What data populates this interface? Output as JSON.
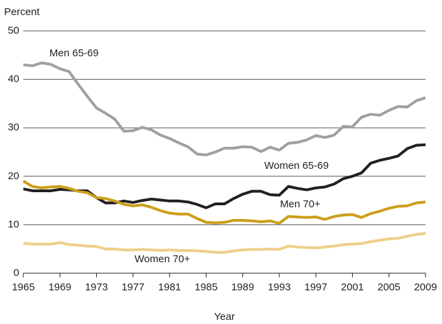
{
  "chart_data": {
    "type": "line",
    "y_axis_label": "Percent",
    "x_axis_label": "Year",
    "x": [
      1965,
      1966,
      1967,
      1968,
      1969,
      1970,
      1971,
      1972,
      1973,
      1974,
      1975,
      1976,
      1977,
      1978,
      1979,
      1980,
      1981,
      1982,
      1983,
      1984,
      1985,
      1986,
      1987,
      1988,
      1989,
      1990,
      1991,
      1992,
      1993,
      1994,
      1995,
      1996,
      1997,
      1998,
      1999,
      2000,
      2001,
      2002,
      2003,
      2004,
      2005,
      2006,
      2007,
      2008,
      2009
    ],
    "series": [
      {
        "name": "Men 65-69",
        "color": "#a0a0a0",
        "values": [
          43.0,
          42.8,
          43.4,
          43.1,
          42.2,
          41.6,
          39.0,
          36.5,
          34.1,
          33.0,
          31.8,
          29.3,
          29.4,
          30.1,
          29.6,
          28.5,
          27.8,
          26.9,
          26.1,
          24.6,
          24.4,
          25.0,
          25.8,
          25.8,
          26.1,
          26.0,
          25.1,
          26.0,
          25.4,
          26.8,
          27.0,
          27.5,
          28.4,
          28.0,
          28.5,
          30.3,
          30.2,
          32.2,
          32.8,
          32.6,
          33.6,
          34.4,
          34.3,
          35.6,
          36.2
        ]
      },
      {
        "name": "Women 65-69",
        "color": "#231f20",
        "values": [
          17.4,
          17.0,
          17.0,
          17.0,
          17.3,
          17.2,
          17.0,
          17.0,
          15.6,
          14.5,
          14.5,
          14.9,
          14.6,
          15.0,
          15.3,
          15.1,
          14.9,
          14.9,
          14.7,
          14.2,
          13.5,
          14.3,
          14.3,
          15.4,
          16.3,
          16.9,
          16.9,
          16.2,
          16.1,
          17.9,
          17.5,
          17.2,
          17.6,
          17.8,
          18.4,
          19.5,
          20.0,
          20.7,
          22.7,
          23.3,
          23.7,
          24.2,
          25.7,
          26.4,
          26.5
        ]
      },
      {
        "name": "Men 70+",
        "color": "#cc9e1c",
        "values": [
          19.0,
          17.9,
          17.6,
          17.8,
          17.9,
          17.5,
          16.9,
          16.6,
          15.6,
          15.4,
          14.9,
          14.2,
          13.9,
          14.1,
          13.6,
          12.9,
          12.4,
          12.2,
          12.2,
          11.3,
          10.5,
          10.4,
          10.5,
          10.9,
          10.9,
          10.8,
          10.6,
          10.8,
          10.3,
          11.7,
          11.6,
          11.5,
          11.6,
          11.1,
          11.7,
          12.0,
          12.1,
          11.5,
          12.3,
          12.8,
          13.4,
          13.8,
          13.9,
          14.5,
          14.7
        ]
      },
      {
        "name": "Women 70+",
        "color": "#f0cf8c",
        "values": [
          6.2,
          6.0,
          6.0,
          6.0,
          6.3,
          5.9,
          5.8,
          5.6,
          5.5,
          5.0,
          5.0,
          4.8,
          4.8,
          4.9,
          4.8,
          4.7,
          4.8,
          4.7,
          4.7,
          4.6,
          4.5,
          4.3,
          4.3,
          4.6,
          4.8,
          4.9,
          4.9,
          5.0,
          4.9,
          5.6,
          5.4,
          5.3,
          5.2,
          5.4,
          5.6,
          5.9,
          6.0,
          6.1,
          6.5,
          6.8,
          7.1,
          7.2,
          7.6,
          8.0,
          8.2
        ]
      }
    ],
    "xlim": [
      1965,
      2009
    ],
    "xticks": [
      1965,
      1969,
      1973,
      1977,
      1981,
      1985,
      1989,
      1993,
      1997,
      2001,
      2005,
      2009
    ],
    "ylim": [
      0,
      50
    ],
    "yticks": [
      0,
      10,
      20,
      30,
      40,
      50
    ],
    "grid": true
  }
}
